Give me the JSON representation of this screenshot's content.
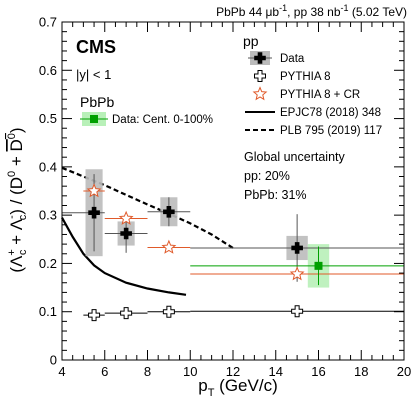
{
  "chart_data": {
    "type": "scatter",
    "header": {
      "left": "PbPb 44 μb",
      "left_sup": "-1",
      "mid": ", pp 38 nb",
      "mid_sup": "-1",
      "right": " (5.02 TeV)"
    },
    "experiment": "CMS",
    "rapidity_label": "|y| < 1",
    "pbpb_label": "PbPb",
    "pp_label": "pp",
    "xlabel": "p",
    "xlabel_sub": "T",
    "xlabel_units": " (GeV/c)",
    "ylabel": "(Λc+ + Λc-) / (D0 + D0bar)",
    "xlim": [
      4,
      20
    ],
    "ylim": [
      0,
      0.7
    ],
    "xticks": [
      4,
      6,
      8,
      10,
      12,
      14,
      16,
      18,
      20
    ],
    "yticks": [
      0,
      0.1,
      0.2,
      0.3,
      0.4,
      0.5,
      0.6,
      0.7
    ],
    "xtick_labels": [
      "4",
      "6",
      "8",
      "10",
      "12",
      "14",
      "16",
      "18",
      "20"
    ],
    "ytick_labels": [
      "0",
      "0.1",
      "0.2",
      "0.3",
      "0.4",
      "0.5",
      "0.6",
      "0.7"
    ],
    "series": [
      {
        "name": "Data",
        "marker": "filled-cross",
        "color": "#000000",
        "sys_color": "#bbbbbb",
        "points": [
          {
            "x": 5.5,
            "y": 0.305,
            "xlo": 4,
            "xhi": 6,
            "stat": 0.08,
            "sys": 0.09
          },
          {
            "x": 7.0,
            "y": 0.262,
            "xlo": 6,
            "xhi": 8,
            "stat": 0.04,
            "sys": 0.025
          },
          {
            "x": 9.0,
            "y": 0.307,
            "xlo": 8,
            "xhi": 10,
            "stat": 0.03,
            "sys": 0.03
          },
          {
            "x": 15.0,
            "y": 0.232,
            "xlo": 10,
            "xhi": 20,
            "stat": 0.07,
            "sys": 0.025
          }
        ]
      },
      {
        "name": "Data: Cent. 0-100%",
        "marker": "filled-square",
        "color": "#00a000",
        "sys_color": "#b8f0b8",
        "points": [
          {
            "x": 16.0,
            "y": 0.195,
            "xlo": 10,
            "xhi": 20,
            "stat": 0.04,
            "sys": 0.045
          }
        ]
      },
      {
        "name": "PYTHIA 8",
        "marker": "open-cross",
        "color": "#000000",
        "points": [
          {
            "x": 5.5,
            "y": 0.093,
            "xlo": 5,
            "xhi": 6
          },
          {
            "x": 7.0,
            "y": 0.097,
            "xlo": 6,
            "xhi": 8
          },
          {
            "x": 9.0,
            "y": 0.1,
            "xlo": 8,
            "xhi": 10
          },
          {
            "x": 15.0,
            "y": 0.101,
            "xlo": 10,
            "xhi": 20
          }
        ]
      },
      {
        "name": "PYTHIA 8 + CR",
        "marker": "open-star",
        "color": "#e05a2a",
        "points": [
          {
            "x": 5.5,
            "y": 0.35,
            "xlo": 5,
            "xhi": 6
          },
          {
            "x": 7.0,
            "y": 0.293,
            "xlo": 6,
            "xhi": 8
          },
          {
            "x": 9.0,
            "y": 0.233,
            "xlo": 8,
            "xhi": 10
          },
          {
            "x": 15.0,
            "y": 0.178,
            "xlo": 10,
            "xhi": 20
          }
        ]
      },
      {
        "name": "EPJC78 (2018) 348",
        "style": "solid-line",
        "color": "#000000",
        "x": [
          4.0,
          4.5,
          5.0,
          5.5,
          6.0,
          7.0,
          8.0,
          9.0,
          9.8
        ],
        "y": [
          0.295,
          0.255,
          0.22,
          0.196,
          0.18,
          0.16,
          0.148,
          0.14,
          0.135
        ]
      },
      {
        "name": "PLB 795 (2019) 117",
        "style": "dashed-line",
        "color": "#000000",
        "x": [
          4.0,
          5.0,
          6.0,
          7.0,
          8.0,
          9.0,
          10.0,
          11.0,
          12.0
        ],
        "y": [
          0.398,
          0.38,
          0.362,
          0.342,
          0.322,
          0.303,
          0.283,
          0.26,
          0.232
        ]
      }
    ],
    "global_uncertainty": {
      "title": "Global uncertainty",
      "pp": "pp: 20%",
      "pbpb": "PbPb: 31%"
    },
    "legend": {
      "placement": "top-right",
      "pp_entries": [
        "Data",
        "PYTHIA 8",
        "PYTHIA 8 + CR",
        "EPJC78 (2018) 348",
        "PLB 795 (2019) 117"
      ],
      "pbpb_entries": [
        "Data: Cent. 0-100%"
      ]
    },
    "grid": false
  }
}
